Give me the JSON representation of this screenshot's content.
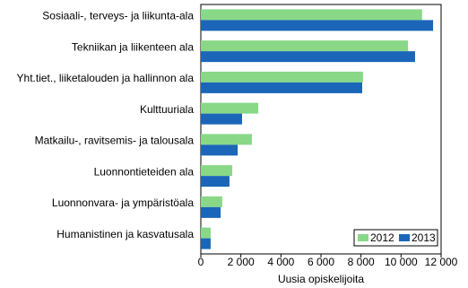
{
  "chart_data": {
    "type": "hbar",
    "categories": [
      "Sosiaali-, terveys- ja liikunta-ala",
      "Tekniikan ja liikenteen ala",
      "Yht.tiet., liiketalouden ja hallinnon ala",
      "Kulttuuriala",
      "Matkailu-, ravitsemis- ja talousala",
      "Luonnontieteiden ala",
      "Luonnonvara- ja ympäristöala",
      "Humanistinen ja kasvatusala"
    ],
    "series": [
      {
        "name": "2012",
        "color": "#88d888",
        "values": [
          11050,
          10350,
          8100,
          2870,
          2550,
          1570,
          1070,
          490
        ]
      },
      {
        "name": "2013",
        "color": "#1b66b8",
        "values": [
          11600,
          10700,
          8060,
          2060,
          1840,
          1430,
          990,
          490
        ]
      }
    ],
    "xlabel": "Uusia opiskelijoita",
    "xlim": [
      0,
      12000
    ],
    "xticks": [
      0,
      {
        "value": 2000,
        "label": "2 000"
      },
      {
        "value": 4000,
        "label": "4 000"
      },
      {
        "value": 6000,
        "label": "6 000"
      },
      {
        "value": 8000,
        "label": "8 000"
      },
      {
        "value": 10000,
        "label": "10 000"
      },
      {
        "value": 12000,
        "label": "12 000"
      }
    ],
    "grid": false,
    "legend": "lower right"
  }
}
